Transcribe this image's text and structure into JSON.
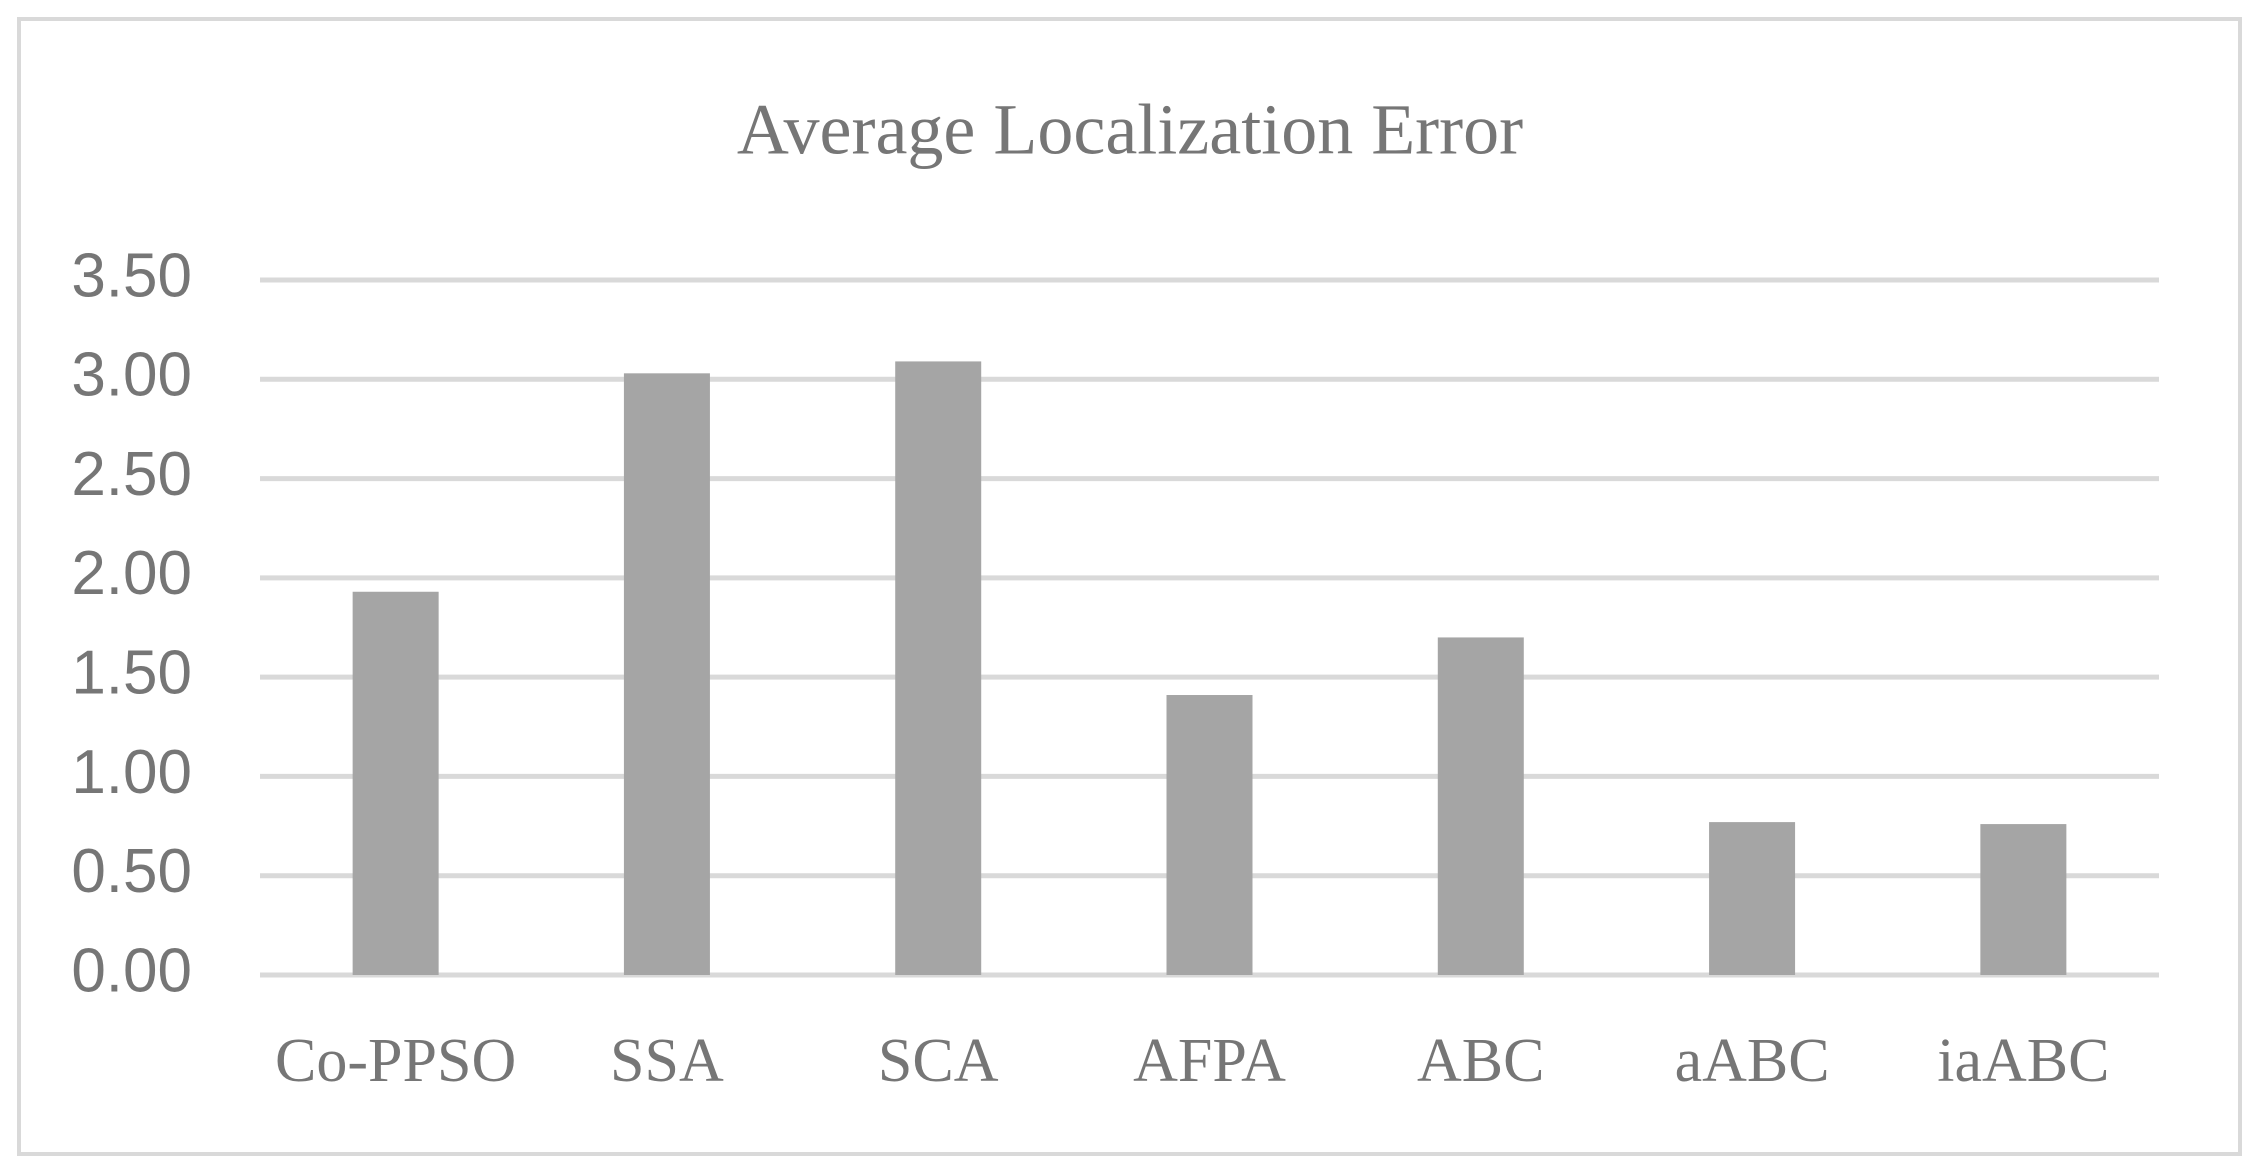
{
  "chart_data": {
    "type": "bar",
    "title": "Average Localization Error",
    "categories": [
      "Co-PPSO",
      "SSA",
      "SCA",
      "AFPA",
      "ABC",
      "aABC",
      "iaABC"
    ],
    "values": [
      1.93,
      3.03,
      3.09,
      1.41,
      1.7,
      0.77,
      0.76
    ],
    "color": "#a5a5a5",
    "ylim": [
      0,
      3.5
    ],
    "yticks": [
      {
        "value": 0,
        "label": "0.00"
      },
      {
        "value": 0.5,
        "label": "0.50"
      },
      {
        "value": 1,
        "label": "1.00"
      },
      {
        "value": 1.5,
        "label": "1.50"
      },
      {
        "value": 2,
        "label": "2.00"
      },
      {
        "value": 2.5,
        "label": "2.50"
      },
      {
        "value": 3,
        "label": "3.00"
      },
      {
        "value": 3.5,
        "label": "3.50"
      }
    ],
    "grid": true
  }
}
